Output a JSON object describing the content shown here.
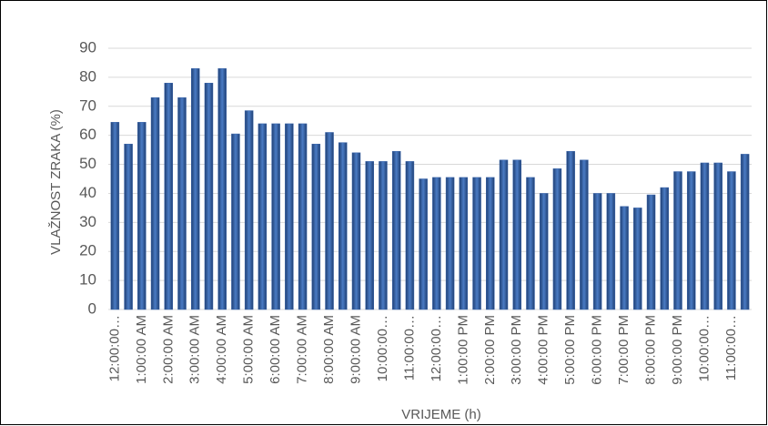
{
  "chart_data": {
    "type": "bar",
    "x_label": "VRIJEME (h)",
    "y_label": "VLAŽNOST ZRAKA (%)",
    "categories": [
      "12:00:00…",
      null,
      "1:00:00 AM",
      null,
      "2:00:00 AM",
      null,
      "3:00:00 AM",
      null,
      "4:00:00 AM",
      null,
      "5:00:00 AM",
      null,
      "6:00:00 AM",
      null,
      "7:00:00 AM",
      null,
      "8:00:00 AM",
      null,
      "9:00:00 AM",
      null,
      "10:00:00…",
      null,
      "11:00:00…",
      null,
      "12:00:00…",
      null,
      "1:00:00 PM",
      null,
      "2:00:00 PM",
      null,
      "3:00:00 PM",
      null,
      "4:00:00 PM",
      null,
      "5:00:00 PM",
      null,
      "6:00:00 PM",
      null,
      "7:00:00 PM",
      null,
      "8:00:00 PM",
      null,
      "9:00:00 PM",
      null,
      "10:00:00…",
      null,
      "11:00:00…",
      null
    ],
    "values": [
      64.5,
      57,
      64.5,
      73,
      78,
      73,
      83,
      78,
      83,
      60.5,
      68.5,
      64,
      64,
      64,
      64,
      57,
      61,
      57.5,
      54,
      51,
      51,
      54.5,
      51,
      45,
      45.5,
      45.5,
      45.5,
      45.5,
      45.5,
      51.5,
      51.5,
      45.5,
      40,
      48.5,
      54.5,
      51.5,
      40,
      40,
      35.5,
      35,
      39.5,
      42,
      47.5,
      47.5,
      50.5,
      50.5,
      47.5,
      53.5
    ],
    "color": "#3b66ab",
    "ylim": [
      0,
      90
    ],
    "yticks": [
      0,
      10,
      20,
      30,
      40,
      50,
      60,
      70,
      80,
      90
    ],
    "grid": true
  }
}
